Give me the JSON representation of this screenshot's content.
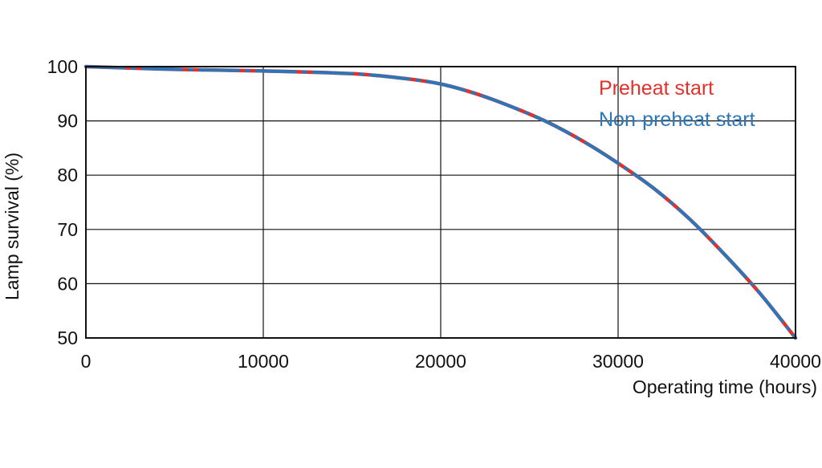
{
  "chart_data": {
    "type": "line",
    "title": "",
    "xlabel": "Operating time (hours)",
    "ylabel": "Lamp survival  (%)",
    "xlim": [
      0,
      40000
    ],
    "ylim": [
      50,
      100
    ],
    "x_ticks": [
      0,
      10000,
      20000,
      30000,
      40000
    ],
    "y_ticks": [
      50,
      60,
      70,
      80,
      90,
      100
    ],
    "x_tick_labels": [
      "0",
      "10000",
      "20000",
      "30000",
      "40000"
    ],
    "y_tick_labels": [
      "50",
      "60",
      "70",
      "80",
      "90",
      "100"
    ],
    "grid": true,
    "legend_position": "top-right",
    "series": [
      {
        "name": "Preheat start",
        "color": "#e0312b",
        "style": "dashed",
        "x": [
          0,
          5000,
          10000,
          15000,
          18000,
          20000,
          22000,
          24000,
          26000,
          28000,
          30000,
          32000,
          34000,
          36000,
          38000,
          40000
        ],
        "y": [
          100,
          99.5,
          99.2,
          98.7,
          97.8,
          96.8,
          95.0,
          92.6,
          89.8,
          86.3,
          82.2,
          77.6,
          72.0,
          65.4,
          58.2,
          50.0
        ]
      },
      {
        "name": "Non-preheat start",
        "color": "#2b76b9",
        "style": "dashed",
        "x": [
          0,
          5000,
          10000,
          15000,
          18000,
          20000,
          22000,
          24000,
          26000,
          28000,
          30000,
          32000,
          34000,
          36000,
          38000,
          40000
        ],
        "y": [
          100,
          99.5,
          99.2,
          98.7,
          97.8,
          96.8,
          95.0,
          92.6,
          89.8,
          86.3,
          82.2,
          77.6,
          72.0,
          65.4,
          58.2,
          50.0
        ]
      }
    ]
  }
}
